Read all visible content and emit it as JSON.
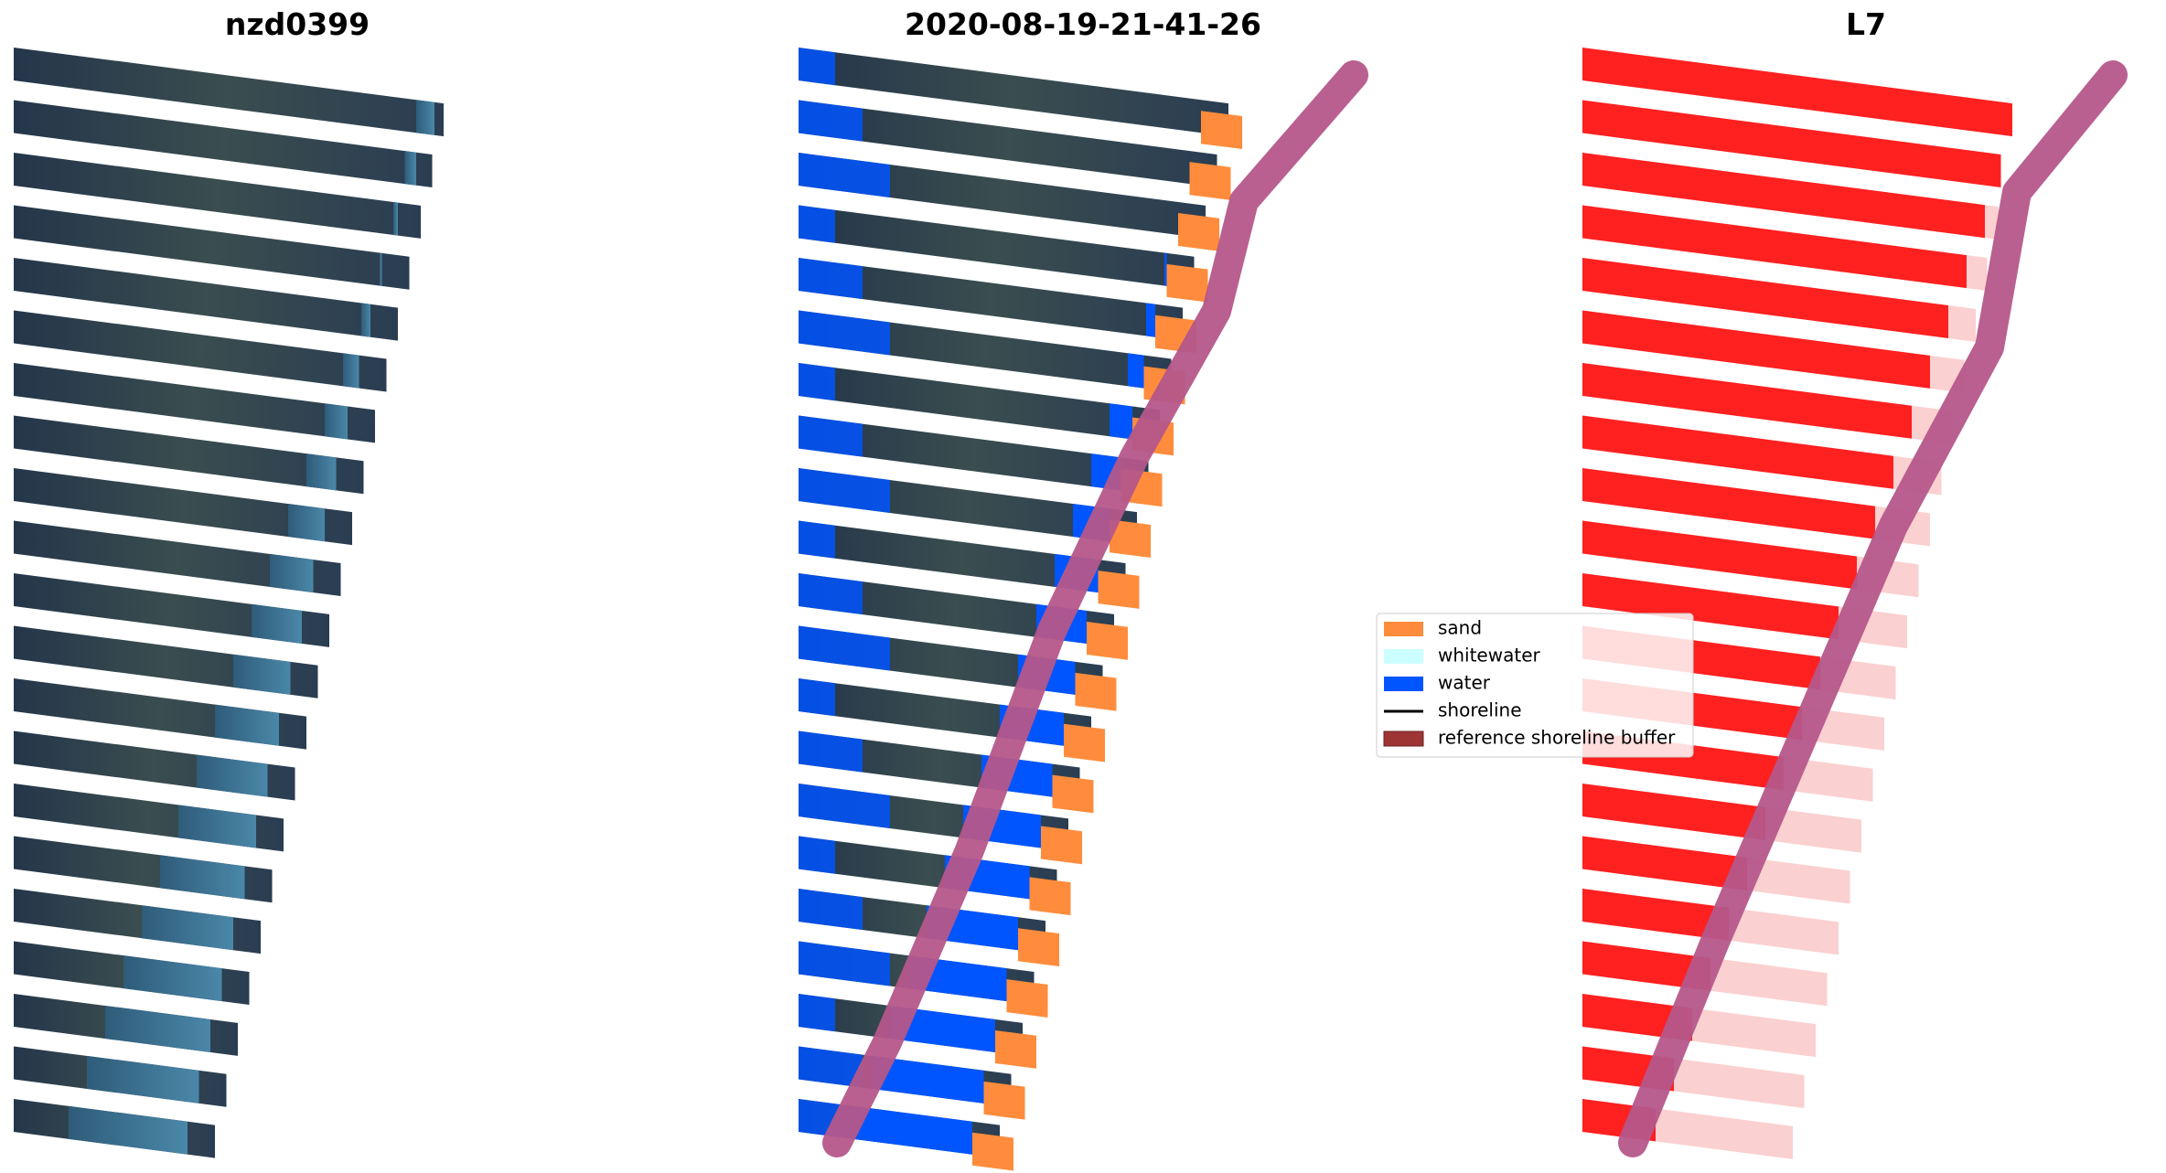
{
  "panels": [
    {
      "title": "nzd0399"
    },
    {
      "title": "2020-08-19-21-41-26"
    },
    {
      "title": "L7"
    }
  ],
  "legend": {
    "items": [
      {
        "label": "sand",
        "color": "#ff8c3c"
      },
      {
        "label": "whitewater",
        "color": "#ccffff"
      },
      {
        "label": "water",
        "color": "#0055ff"
      },
      {
        "label": "shoreline",
        "color": "#000000"
      },
      {
        "label": "reference shoreline buffer",
        "color": "#9e3535"
      }
    ]
  }
}
